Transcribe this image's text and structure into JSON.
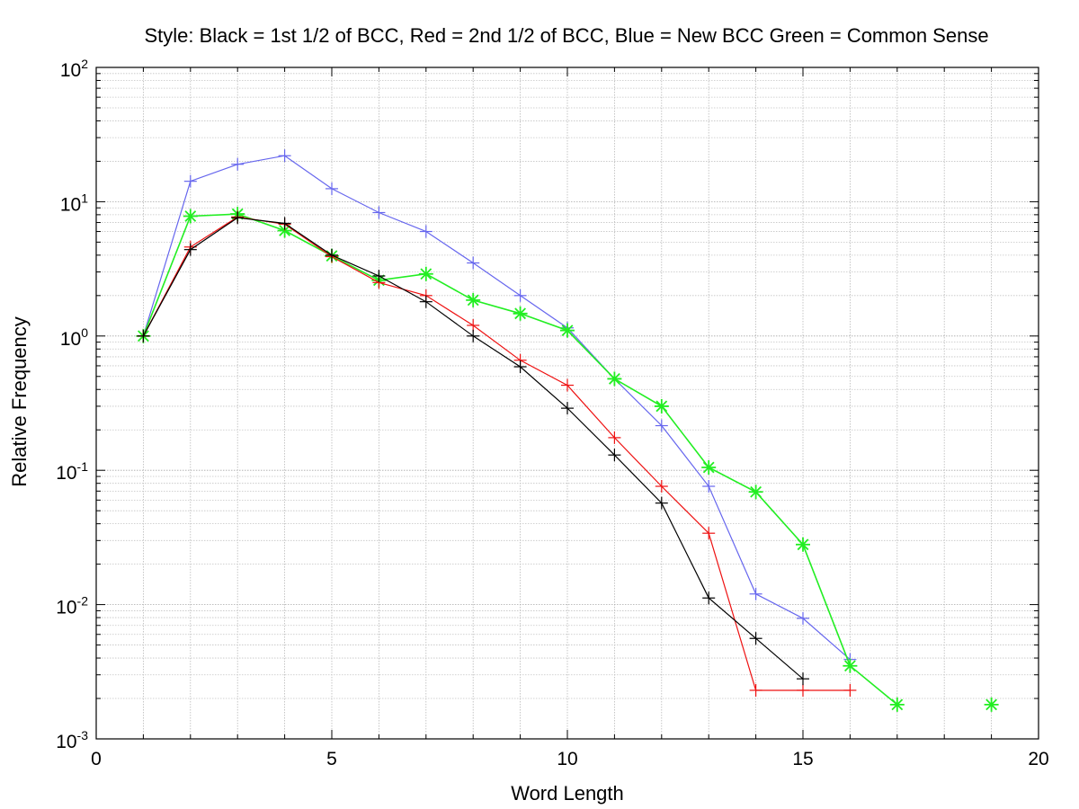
{
  "chart_data": {
    "type": "line",
    "title": "Style: Black = 1st 1/2 of BCC, Red = 2nd 1/2 of BCC, Blue = New BCC Green = Common Sense",
    "xlabel": "Word Length",
    "ylabel": "Relative Frequency",
    "xlim": [
      0,
      20
    ],
    "ylim": [
      0.001,
      100
    ],
    "yscale": "log",
    "grid": true,
    "xticks": [
      {
        "value": 0,
        "label": "0"
      },
      {
        "value": 5,
        "label": "5"
      },
      {
        "value": 10,
        "label": "10"
      },
      {
        "value": 15,
        "label": "15"
      },
      {
        "value": 20,
        "label": "20"
      }
    ],
    "yticks": [
      {
        "value": 0.001,
        "base": "10",
        "exp": "-3"
      },
      {
        "value": 0.01,
        "base": "10",
        "exp": "-2"
      },
      {
        "value": 0.1,
        "base": "10",
        "exp": "-1"
      },
      {
        "value": 1,
        "base": "10",
        "exp": "0"
      },
      {
        "value": 10,
        "base": "10",
        "exp": "1"
      },
      {
        "value": 100,
        "base": "10",
        "exp": "2"
      }
    ],
    "series": [
      {
        "color": "#6666ee",
        "marker": "plus",
        "width": 1.2,
        "x": [
          1,
          2,
          3,
          4,
          5,
          6,
          7,
          8,
          9,
          10,
          11,
          12,
          13,
          14,
          15,
          16
        ],
        "y": [
          1.0,
          14.2,
          19.0,
          22.0,
          12.5,
          8.3,
          6.0,
          3.5,
          2.0,
          1.15,
          0.48,
          0.215,
          0.076,
          0.012,
          0.0079,
          0.0039
        ]
      },
      {
        "color": "#22ee22",
        "marker": "star",
        "width": 1.6,
        "x": [
          1,
          2,
          3,
          4,
          5,
          6,
          7,
          8,
          9,
          10,
          11,
          12,
          13,
          14,
          15,
          16,
          17
        ],
        "y": [
          1.0,
          7.8,
          8.1,
          6.1,
          3.95,
          2.6,
          2.9,
          1.85,
          1.47,
          1.1,
          0.48,
          0.3,
          0.105,
          0.069,
          0.028,
          0.0035,
          0.0018
        ]
      },
      {
        "color": "#22ee22",
        "marker": "star",
        "width": 1.6,
        "x": [
          19
        ],
        "y": [
          0.0018
        ]
      },
      {
        "color": "#ee1111",
        "marker": "plus",
        "width": 1.2,
        "x": [
          1,
          2,
          3,
          4,
          5,
          6,
          7,
          8,
          9,
          10,
          11,
          12,
          13,
          14,
          15,
          16
        ],
        "y": [
          1.0,
          4.6,
          7.7,
          6.8,
          3.9,
          2.5,
          2.0,
          1.2,
          0.66,
          0.43,
          0.175,
          0.076,
          0.034,
          0.0023,
          0.0023,
          0.0023
        ]
      },
      {
        "color": "#000000",
        "marker": "plus",
        "width": 1.2,
        "x": [
          1,
          2,
          3,
          4,
          5,
          6,
          7,
          8,
          9,
          10,
          11,
          12,
          13,
          14,
          15
        ],
        "y": [
          1.0,
          4.4,
          7.6,
          6.9,
          4.0,
          2.8,
          1.8,
          1.0,
          0.59,
          0.29,
          0.13,
          0.057,
          0.0112,
          0.0056,
          0.0028
        ]
      }
    ]
  }
}
